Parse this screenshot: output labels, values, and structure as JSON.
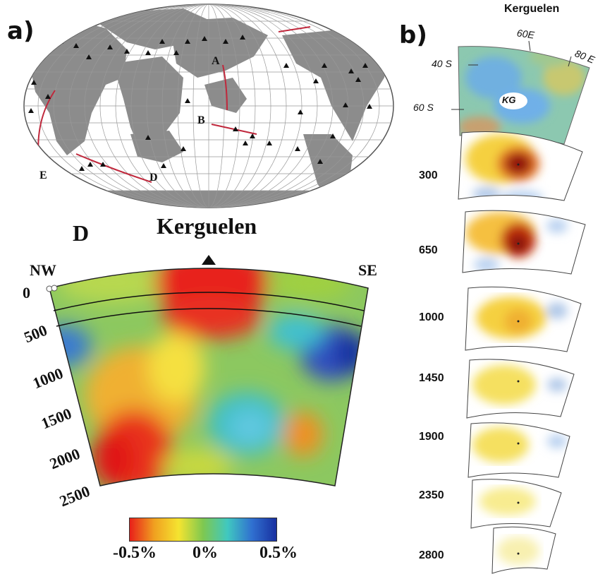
{
  "panel_a": {
    "label": "a)",
    "profile_labels": [
      "A",
      "B",
      "D",
      "E"
    ]
  },
  "panel_b": {
    "label": "b)",
    "title": "Kerguelen",
    "lon_labels": [
      "60E",
      "80 E"
    ],
    "lat_labels": [
      "40 S",
      "60 S"
    ],
    "site_label": "KG",
    "depths": [
      "300",
      "650",
      "1000",
      "1450",
      "1900",
      "2350",
      "2800"
    ]
  },
  "cross_section": {
    "profile": "D",
    "title": "Kerguelen",
    "left_end": "NW",
    "right_end": "SE",
    "depth_ticks": [
      "0",
      "500",
      "1000",
      "1500",
      "2000",
      "2500"
    ],
    "colorbar_ticks": [
      "-0.5%",
      "0%",
      "0.5%"
    ],
    "colorbar_colors": [
      "#e8201a",
      "#f0a020",
      "#f5e430",
      "#7ec850",
      "#40c8c0",
      "#3070d0",
      "#1830a0"
    ]
  }
}
